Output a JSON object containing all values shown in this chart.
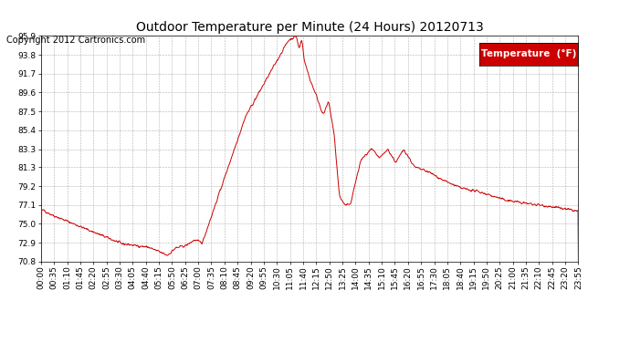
{
  "title": "Outdoor Temperature per Minute (24 Hours) 20120713",
  "copyright": "Copyright 2012 Cartronics.com",
  "legend_label": "Temperature  (°F)",
  "background_color": "#ffffff",
  "plot_bg_color": "#ffffff",
  "grid_color": "#b0b0b0",
  "line_color": "#cc0000",
  "legend_bg": "#cc0000",
  "legend_text_color": "#ffffff",
  "title_fontsize": 10,
  "copyright_fontsize": 7,
  "tick_fontsize": 6.5,
  "legend_fontsize": 7.5,
  "ylim": [
    70.8,
    95.9
  ],
  "yticks": [
    70.8,
    72.9,
    75.0,
    77.1,
    79.2,
    81.3,
    83.3,
    85.4,
    87.5,
    89.6,
    91.7,
    93.8,
    95.9
  ],
  "xtick_labels": [
    "00:00",
    "00:35",
    "01:10",
    "01:45",
    "02:20",
    "02:55",
    "03:30",
    "04:05",
    "04:40",
    "05:15",
    "05:50",
    "06:25",
    "07:00",
    "07:35",
    "08:10",
    "08:45",
    "09:20",
    "09:55",
    "10:30",
    "11:05",
    "11:40",
    "12:15",
    "12:50",
    "13:25",
    "14:00",
    "14:35",
    "15:10",
    "15:45",
    "16:20",
    "16:55",
    "17:30",
    "18:05",
    "18:40",
    "19:15",
    "19:50",
    "20:25",
    "21:00",
    "21:35",
    "22:10",
    "22:45",
    "23:20",
    "23:55"
  ],
  "num_points": 1440
}
